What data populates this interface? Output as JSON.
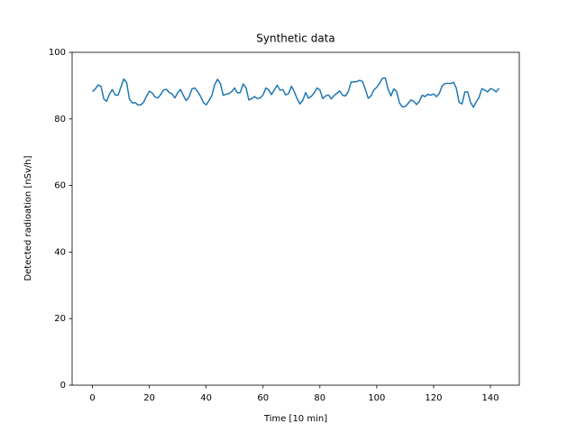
{
  "chart_data": {
    "type": "line",
    "title": "Synthetic data",
    "x_label": "Time [10 min]",
    "y_label": "Detected radioation [nSv/h]",
    "color": "#1f77b4",
    "x": [
      0,
      1,
      2,
      3,
      4,
      5,
      6,
      7,
      8,
      9,
      10,
      11,
      12,
      13,
      14,
      15,
      16,
      17,
      18,
      19,
      20,
      21,
      22,
      23,
      24,
      25,
      26,
      27,
      28,
      29,
      30,
      31,
      32,
      33,
      34,
      35,
      36,
      37,
      38,
      39,
      40,
      41,
      42,
      43,
      44,
      45,
      46,
      47,
      48,
      49,
      50,
      51,
      52,
      53,
      54,
      55,
      56,
      57,
      58,
      59,
      60,
      61,
      62,
      63,
      64,
      65,
      66,
      67,
      68,
      69,
      70,
      71,
      72,
      73,
      74,
      75,
      76,
      77,
      78,
      79,
      80,
      81,
      82,
      83,
      84,
      85,
      86,
      87,
      88,
      89,
      90,
      91,
      92,
      93,
      94,
      95,
      96,
      97,
      98,
      99,
      100,
      101,
      102,
      103,
      104,
      105,
      106,
      107,
      108,
      109,
      110,
      111,
      112,
      113,
      114,
      115,
      116,
      117,
      118,
      119,
      120,
      121,
      122,
      123,
      124,
      125,
      126,
      127,
      128,
      129,
      130,
      131,
      132,
      133,
      134,
      135,
      136,
      137,
      138,
      139,
      140,
      141,
      142,
      143
    ],
    "values": [
      88.2,
      89,
      90.2,
      89.8,
      86,
      85.3,
      87.5,
      88.8,
      87.2,
      87.1,
      89.5,
      92,
      91,
      86,
      84.8,
      84.9,
      84.2,
      84.2,
      85,
      86.8,
      88.3,
      87.8,
      86.6,
      86.3,
      87.3,
      88.7,
      88.9,
      87.9,
      87.5,
      86.3,
      87.9,
      88.8,
      87,
      85.5,
      86.6,
      89,
      89.3,
      88.2,
      86.8,
      85,
      84.2,
      85.5,
      87,
      90.3,
      91.9,
      90.6,
      87.1,
      87.4,
      87.6,
      88.2,
      89.3,
      87.8,
      87.9,
      90.5,
      89.4,
      85.7,
      86.1,
      86.7,
      86.1,
      86.3,
      87.2,
      89.3,
      88.7,
      87.3,
      88.8,
      90.1,
      88.6,
      88.8,
      87.2,
      87.6,
      89.8,
      88.2,
      86,
      84.5,
      85.6,
      87.9,
      86.2,
      86.8,
      87.8,
      89.3,
      88.7,
      86.1,
      86.9,
      87.2,
      86,
      87,
      87.7,
      88.4,
      87.1,
      86.9,
      88.2,
      91.1,
      91.1,
      91.2,
      91.6,
      91.2,
      88.9,
      86.2,
      86.9,
      88.7,
      89.5,
      90.7,
      92.2,
      92.3,
      88.9,
      86.9,
      89,
      88.2,
      84.8,
      83.6,
      83.7,
      84.6,
      85.7,
      85.3,
      84.3,
      85.3,
      87.1,
      86.7,
      87.4,
      87.1,
      87.5,
      86.7,
      87.6,
      89.9,
      90.6,
      90.7,
      90.6,
      91,
      89.2,
      85,
      84.5,
      88.1,
      88.1,
      85,
      83.5,
      85.1,
      86.5,
      89.1,
      88.6,
      88.1,
      89.1,
      88.8,
      88.1,
      89.2
    ],
    "xlim": [
      -7.15,
      150.15
    ],
    "xticks": [
      0,
      20,
      40,
      60,
      80,
      100,
      120,
      140
    ],
    "ylim": [
      0,
      100
    ],
    "yticks": [
      0,
      20,
      40,
      60,
      80,
      100
    ]
  }
}
